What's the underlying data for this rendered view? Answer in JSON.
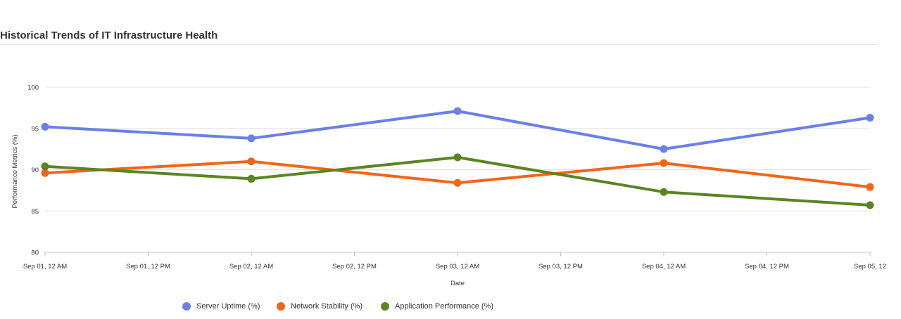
{
  "chart_data": {
    "type": "line",
    "title": "Historical Trends of IT Infrastructure Health",
    "xlabel": "Date",
    "ylabel": "Performance Metrics (%)",
    "ylim": [
      80,
      100
    ],
    "yticks": [
      "80",
      "85",
      "90",
      "95",
      "100"
    ],
    "x": [
      "2023-09-01T00:00",
      "2023-09-02T00:00",
      "2023-09-03T00:00",
      "2023-09-04T00:00",
      "2023-09-05T00:00"
    ],
    "xticks": [
      "Sep 01, 12 AM",
      "Sep 01, 12 PM",
      "Sep 02, 12 AM",
      "Sep 02, 12 PM",
      "Sep 03, 12 AM",
      "Sep 03, 12 PM",
      "Sep 04, 12 AM",
      "Sep 04, 12 PM",
      "Sep 05, 12"
    ],
    "grid": true,
    "legend_position": "bottom",
    "series": [
      {
        "name": "Server Uptime (%)",
        "color": "#6b7fe8",
        "values": [
          95.2,
          93.8,
          97.1,
          92.5,
          96.3
        ]
      },
      {
        "name": "Network Stability (%)",
        "color": "#f26519",
        "values": [
          89.6,
          91.0,
          88.4,
          90.8,
          87.9
        ]
      },
      {
        "name": "Application Performance (%)",
        "color": "#5a8522",
        "values": [
          90.4,
          88.9,
          91.5,
          87.3,
          85.7
        ]
      }
    ]
  }
}
